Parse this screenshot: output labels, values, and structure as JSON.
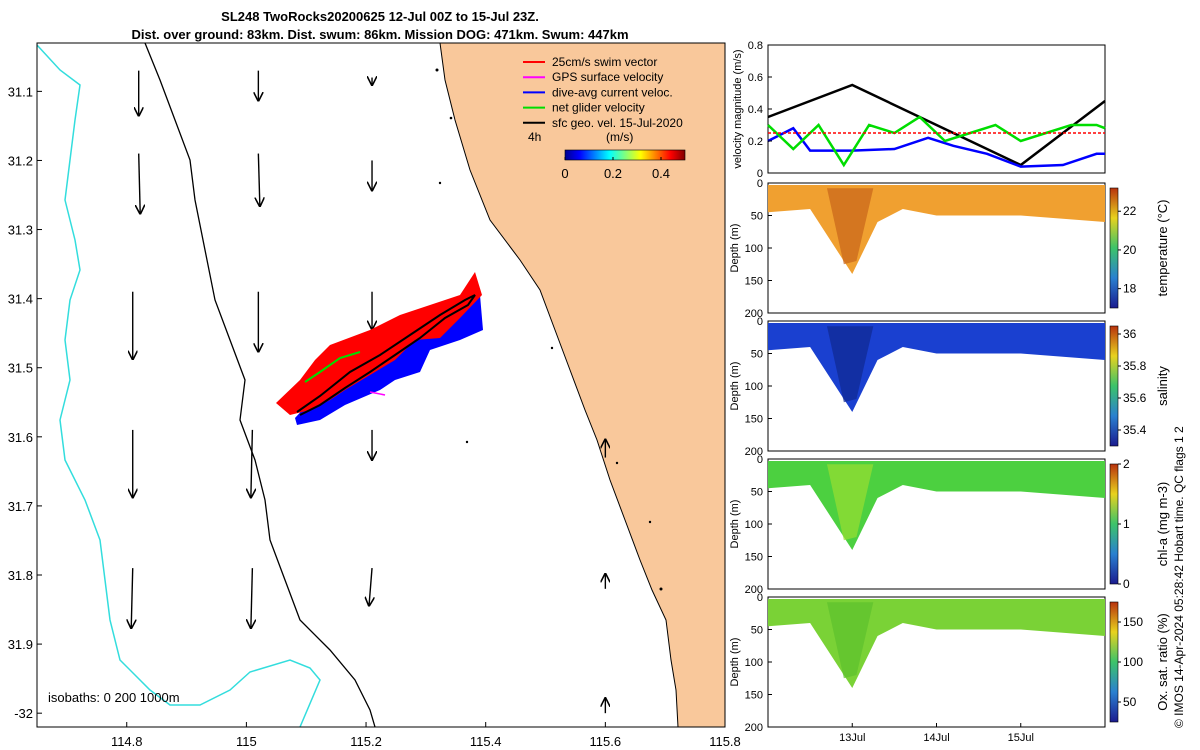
{
  "title_line1": "SL248 TwoRocks20200625 12-Jul 00Z to 15-Jul 23Z.",
  "title_line2": "Dist. over ground: 83km. Dist. swum: 86km. Mission DOG: 471km. Swum: 447km",
  "isobaths_label": "isobaths: 0   200  1000m",
  "side_note": "© IMOS 14-Apr-2024 05:28:42 Hobart time. QC flags 1  2",
  "colors": {
    "land": "#f9c89b",
    "shelf_isobath": "#000000",
    "deep_isobath": "#33dddd",
    "swim": "#ff0000",
    "gps": "#ff00ff",
    "current": "#0000ff",
    "net": "#00dd00",
    "sfc": "#000000"
  },
  "chart_data": [
    {
      "type": "map",
      "xlim": [
        114.65,
        115.8
      ],
      "ylim": [
        -32.02,
        -31.03
      ],
      "xticks": [
        114.8,
        115,
        115.2,
        115.4,
        115.6,
        115.8
      ],
      "yticks": [
        -31.1,
        -31.2,
        -31.3,
        -31.4,
        -31.5,
        -31.6,
        -31.7,
        -31.8,
        -31.9,
        -32
      ],
      "xtick_labels": [
        "114.8",
        "115",
        "115.2",
        "115.4",
        "115.6",
        "115.8"
      ],
      "ytick_labels": [
        "31.1",
        "31.2",
        "31.3",
        "31.4",
        "31.5",
        "31.6",
        "31.7",
        "31.8",
        "31.9",
        "-32"
      ],
      "legend": {
        "position": "top-right",
        "entries": [
          {
            "label": "25cm/s swim vector",
            "color": "#ff0000"
          },
          {
            "label": "GPS surface velocity",
            "color": "#ff00ff"
          },
          {
            "label": "dive-avg current veloc.",
            "color": "#0000ff"
          },
          {
            "label": "net glider velocity",
            "color": "#00dd00"
          },
          {
            "label": "sfc geo. vel. 15-Jul-2020",
            "color": "#000000"
          }
        ],
        "time_label": "4h",
        "unit_label": "(m/s)",
        "colorbar_ticks": [
          "0",
          "0.2",
          "0.4"
        ],
        "colorbar_range": [
          0,
          0.5
        ]
      },
      "glider_track": [
        [
          115.4,
          -31.385
        ],
        [
          115.35,
          -31.41
        ],
        [
          115.3,
          -31.44
        ],
        [
          115.25,
          -31.47
        ],
        [
          115.2,
          -31.5
        ],
        [
          115.15,
          -31.53
        ],
        [
          115.1,
          -31.56
        ]
      ],
      "geo_vectors": [
        {
          "lon": 114.82,
          "lat": -31.07,
          "u": 0.0,
          "v": -0.3
        },
        {
          "lon": 115.02,
          "lat": -31.07,
          "u": 0.0,
          "v": -0.2
        },
        {
          "lon": 115.21,
          "lat": -31.08,
          "u": 0.0,
          "v": -0.05
        },
        {
          "lon": 114.82,
          "lat": -31.19,
          "u": 0.01,
          "v": -0.4
        },
        {
          "lon": 115.02,
          "lat": -31.19,
          "u": 0.01,
          "v": -0.35
        },
        {
          "lon": 115.21,
          "lat": -31.2,
          "u": 0.0,
          "v": -0.2
        },
        {
          "lon": 114.81,
          "lat": -31.39,
          "u": 0.0,
          "v": -0.45
        },
        {
          "lon": 115.02,
          "lat": -31.39,
          "u": 0.0,
          "v": -0.4
        },
        {
          "lon": 115.21,
          "lat": -31.39,
          "u": 0.0,
          "v": -0.25
        },
        {
          "lon": 114.81,
          "lat": -31.59,
          "u": 0.0,
          "v": -0.45
        },
        {
          "lon": 115.01,
          "lat": -31.59,
          "u": -0.01,
          "v": -0.45
        },
        {
          "lon": 115.21,
          "lat": -31.59,
          "u": 0.0,
          "v": -0.2
        },
        {
          "lon": 114.81,
          "lat": -31.79,
          "u": -0.01,
          "v": -0.4
        },
        {
          "lon": 115.01,
          "lat": -31.79,
          "u": -0.01,
          "v": -0.4
        },
        {
          "lon": 115.21,
          "lat": -31.79,
          "u": -0.02,
          "v": -0.25
        },
        {
          "lon": 115.6,
          "lat": -31.63,
          "u": 0.0,
          "v": 0.12
        },
        {
          "lon": 115.6,
          "lat": -31.82,
          "u": 0.0,
          "v": 0.1
        },
        {
          "lon": 115.6,
          "lat": -32.0,
          "u": 0.0,
          "v": 0.1
        }
      ]
    },
    {
      "type": "line",
      "ylabel": "velocity magnitude (m/s)",
      "ylim": [
        0,
        0.8
      ],
      "yticks": [
        0,
        0.2,
        0.4,
        0.6,
        0.8
      ],
      "xlim": [
        0,
        4
      ],
      "series": [
        {
          "name": "sfc geo. vel.",
          "color": "#000000",
          "x": [
            0,
            1,
            2,
            3,
            4
          ],
          "values": [
            0.35,
            0.55,
            0.3,
            0.05,
            0.45
          ]
        },
        {
          "name": "dive-avg current",
          "color": "#0000ff",
          "x": [
            0,
            0.3,
            0.5,
            1,
            1.5,
            1.9,
            2.2,
            2.6,
            3.0,
            3.5,
            3.9,
            4.0
          ],
          "values": [
            0.2,
            0.28,
            0.14,
            0.14,
            0.15,
            0.22,
            0.17,
            0.12,
            0.04,
            0.05,
            0.12,
            0.12
          ]
        },
        {
          "name": "net glider velocity",
          "color": "#00dd00",
          "x": [
            0,
            0.3,
            0.6,
            0.9,
            1.2,
            1.5,
            1.8,
            2.1,
            2.4,
            2.7,
            3.0,
            3.3,
            3.6,
            3.9,
            4.0
          ],
          "values": [
            0.3,
            0.15,
            0.3,
            0.05,
            0.3,
            0.25,
            0.35,
            0.2,
            0.25,
            0.3,
            0.2,
            0.25,
            0.3,
            0.3,
            0.28
          ]
        },
        {
          "name": "swim vector",
          "color": "#ff0000",
          "x": [
            0,
            4
          ],
          "values": [
            0.25,
            0.25
          ]
        }
      ]
    },
    {
      "type": "heatmap",
      "variable": "temperature",
      "ylabel": "Depth (m)",
      "yticks": [
        0,
        50,
        100,
        150,
        200
      ],
      "ylim": [
        0,
        200
      ],
      "colorbar_label": "temperature (°C)",
      "colorbar_ticks": [
        18,
        20,
        22
      ],
      "colorbar_range": [
        17,
        23.2
      ],
      "profile_depth": [
        [
          0,
          45
        ],
        [
          0.5,
          40
        ],
        [
          0.8,
          100
        ],
        [
          1.0,
          140
        ],
        [
          1.3,
          60
        ],
        [
          1.6,
          40
        ],
        [
          2,
          50
        ],
        [
          3,
          50
        ],
        [
          4,
          60
        ]
      ]
    },
    {
      "type": "heatmap",
      "variable": "salinity",
      "ylabel": "Depth (m)",
      "yticks": [
        0,
        50,
        100,
        150,
        200
      ],
      "ylim": [
        0,
        200
      ],
      "colorbar_label": "salinity",
      "colorbar_ticks": [
        35.4,
        35.6,
        35.8,
        36
      ],
      "colorbar_range": [
        35.3,
        36.05
      ],
      "profile_depth": [
        [
          0,
          45
        ],
        [
          0.5,
          40
        ],
        [
          0.8,
          100
        ],
        [
          1.0,
          140
        ],
        [
          1.3,
          60
        ],
        [
          1.6,
          40
        ],
        [
          2,
          50
        ],
        [
          3,
          50
        ],
        [
          4,
          60
        ]
      ]
    },
    {
      "type": "heatmap",
      "variable": "chl-a",
      "ylabel": "Depth (m)",
      "yticks": [
        0,
        50,
        100,
        150,
        200
      ],
      "ylim": [
        0,
        200
      ],
      "colorbar_label": "chl-a (mg m-3)",
      "colorbar_ticks": [
        0,
        1,
        2
      ],
      "colorbar_range": [
        0,
        2
      ],
      "profile_depth": [
        [
          0,
          45
        ],
        [
          0.5,
          40
        ],
        [
          0.8,
          100
        ],
        [
          1.0,
          140
        ],
        [
          1.3,
          60
        ],
        [
          1.6,
          40
        ],
        [
          2,
          50
        ],
        [
          3,
          50
        ],
        [
          4,
          60
        ]
      ]
    },
    {
      "type": "heatmap",
      "variable": "oxygen saturation",
      "ylabel": "Depth (m)",
      "yticks": [
        0,
        50,
        100,
        150,
        200
      ],
      "ylim": [
        0,
        200
      ],
      "xtick_labels": [
        "13Jul",
        "14Jul",
        "15Jul"
      ],
      "xticks": [
        1,
        2,
        3
      ],
      "colorbar_label": "Ox. sat. ratio (%)",
      "colorbar_ticks": [
        50,
        100,
        150
      ],
      "colorbar_range": [
        25,
        175
      ],
      "profile_depth": [
        [
          0,
          45
        ],
        [
          0.5,
          40
        ],
        [
          0.8,
          100
        ],
        [
          1.0,
          140
        ],
        [
          1.3,
          60
        ],
        [
          1.6,
          40
        ],
        [
          2,
          50
        ],
        [
          3,
          50
        ],
        [
          4,
          60
        ]
      ]
    }
  ]
}
